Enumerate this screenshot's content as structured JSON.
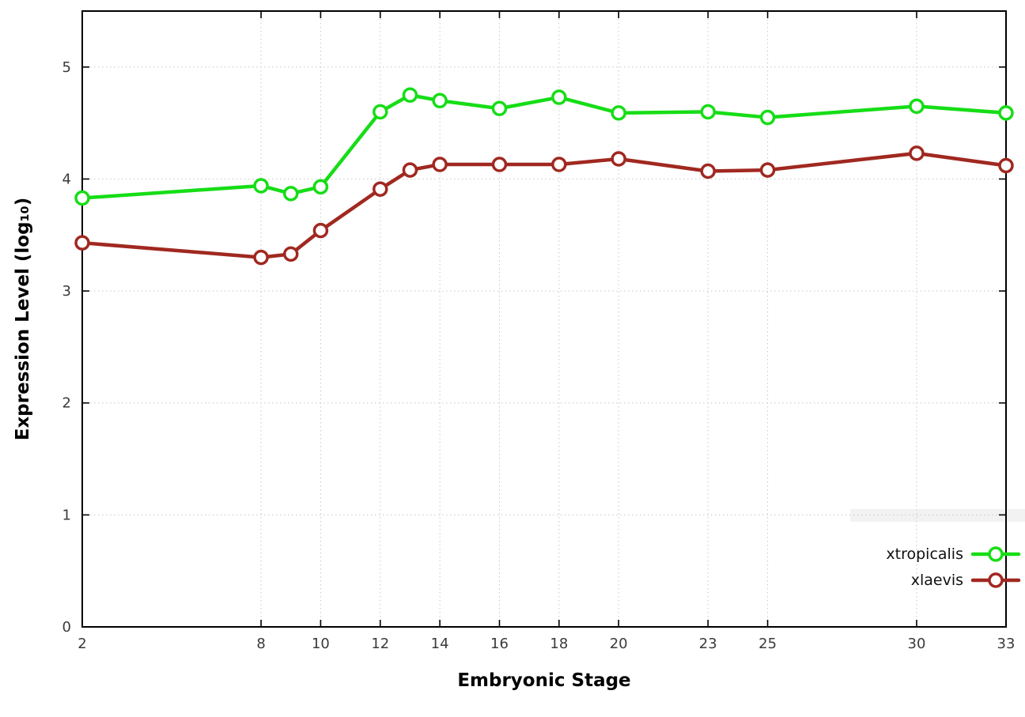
{
  "chart_data": {
    "type": "line",
    "title": "",
    "xlabel": "Embryonic Stage",
    "ylabel": "Expression Level (log₁₀)",
    "x": [
      2,
      8,
      9,
      10,
      12,
      13,
      14,
      16,
      18,
      20,
      23,
      25,
      30,
      33
    ],
    "xtick_labels": [
      2,
      8,
      10,
      12,
      14,
      16,
      18,
      20,
      23,
      25,
      30,
      33
    ],
    "ytick_labels": [
      0,
      1,
      2,
      3,
      4,
      5
    ],
    "xlim": [
      2,
      33
    ],
    "ylim": [
      0,
      5.5
    ],
    "grid": true,
    "legend_position": "bottom-right",
    "series": [
      {
        "name": "xtropicalis",
        "color": "#16dd16",
        "values": [
          3.83,
          3.94,
          3.87,
          3.93,
          4.6,
          4.75,
          4.7,
          4.63,
          4.73,
          4.59,
          4.6,
          4.55,
          4.65,
          4.59
        ]
      },
      {
        "name": "xlaevis",
        "color": "#a02820",
        "values": [
          3.43,
          3.3,
          3.33,
          3.54,
          3.91,
          4.08,
          4.13,
          4.13,
          4.13,
          4.18,
          4.07,
          4.08,
          4.23,
          4.12
        ]
      }
    ],
    "style": {
      "border_color": "#000000",
      "grid_color": "#c8c8c8",
      "tick_label_color": "#3a3a3a",
      "axis_label_color": "#000000",
      "marker_fill": "#ffffff"
    }
  }
}
